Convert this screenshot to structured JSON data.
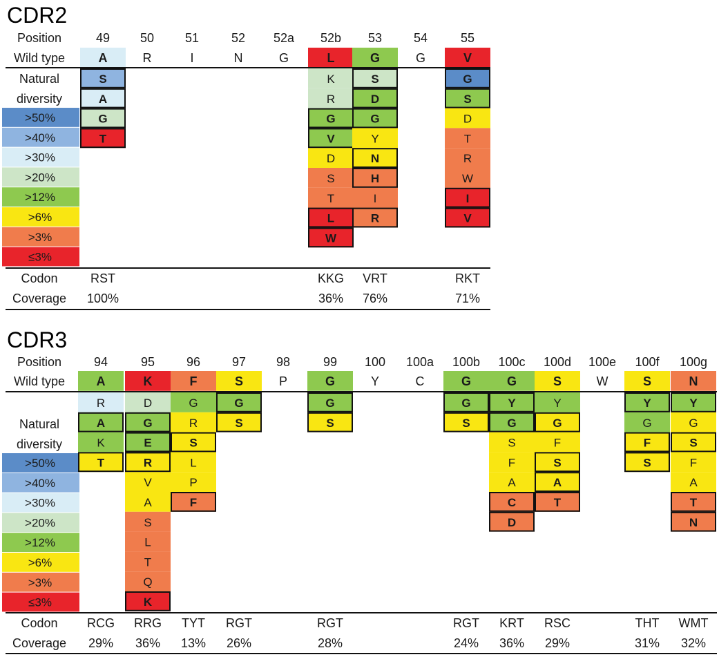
{
  "colors": {
    "gt50": "#5b8cc8",
    "gt40": "#8fb4e0",
    "gt30": "#d9edf6",
    "gt20": "#cde5c7",
    "gt12": "#8ec94f",
    "gt6": "#f9e612",
    "gt3": "#f07c4c",
    "le3": "#e8242b"
  },
  "legend": {
    "natural_diversity": [
      "Natural",
      "diversity"
    ],
    "items": [
      {
        "label": ">50%",
        "color": "gt50"
      },
      {
        "label": ">40%",
        "color": "gt40"
      },
      {
        "label": ">30%",
        "color": "gt30"
      },
      {
        "label": ">20%",
        "color": "gt20"
      },
      {
        "label": ">12%",
        "color": "gt12"
      },
      {
        "label": ">6%",
        "color": "gt6"
      },
      {
        "label": ">3%",
        "color": "gt3"
      },
      {
        "label": "≤3%",
        "color": "le3"
      }
    ]
  },
  "panels": [
    {
      "title": "CDR2",
      "row_labels": {
        "position": "Position",
        "wild_type": "Wild type",
        "codon": "Codon",
        "coverage": "Coverage"
      },
      "columns": [
        {
          "position": "49",
          "wild": {
            "aa": "A",
            "color": "gt30",
            "bold": true
          },
          "variants": [
            {
              "aa": "S",
              "color": "gt40",
              "bold": true,
              "boxed": true
            },
            {
              "aa": "A",
              "color": "gt30",
              "bold": true,
              "boxed": true
            },
            {
              "aa": "G",
              "color": "gt20",
              "bold": true,
              "boxed": true
            },
            {
              "aa": "T",
              "color": "le3",
              "bold": true,
              "boxed": true
            }
          ],
          "codon": "RST",
          "coverage": "100%"
        },
        {
          "position": "50",
          "wild": {
            "aa": "R"
          },
          "variants": [],
          "codon": "",
          "coverage": ""
        },
        {
          "position": "51",
          "wild": {
            "aa": "I"
          },
          "variants": [],
          "codon": "",
          "coverage": ""
        },
        {
          "position": "52",
          "wild": {
            "aa": "N"
          },
          "variants": [],
          "codon": "",
          "coverage": ""
        },
        {
          "position": "52a",
          "wild": {
            "aa": "G"
          },
          "variants": [],
          "codon": "",
          "coverage": ""
        },
        {
          "position": "52b",
          "wild": {
            "aa": "L",
            "color": "le3",
            "bold": true
          },
          "variants": [
            {
              "aa": "K",
              "color": "gt20"
            },
            {
              "aa": "R",
              "color": "gt20"
            },
            {
              "aa": "G",
              "color": "gt12",
              "bold": true,
              "boxed": true
            },
            {
              "aa": "V",
              "color": "gt12",
              "bold": true,
              "boxed": true
            },
            {
              "aa": "D",
              "color": "gt6"
            },
            {
              "aa": "S",
              "color": "gt3"
            },
            {
              "aa": "T",
              "color": "gt3"
            },
            {
              "aa": "L",
              "color": "le3",
              "bold": true,
              "boxed": true
            },
            {
              "aa": "W",
              "color": "le3",
              "bold": true,
              "boxed": true
            }
          ],
          "codon": "KKG",
          "coverage": "36%"
        },
        {
          "position": "53",
          "wild": {
            "aa": "G",
            "color": "gt12",
            "bold": true
          },
          "variants": [
            {
              "aa": "S",
              "color": "gt20",
              "bold": true,
              "boxed": true
            },
            {
              "aa": "D",
              "color": "gt12",
              "bold": true,
              "boxed": true
            },
            {
              "aa": "G",
              "color": "gt12",
              "bold": true,
              "boxed": true
            },
            {
              "aa": "Y",
              "color": "gt6"
            },
            {
              "aa": "N",
              "color": "gt6",
              "bold": true,
              "boxed": true
            },
            {
              "aa": "H",
              "color": "gt3",
              "bold": true,
              "boxed": true
            },
            {
              "aa": "I",
              "color": "gt3"
            },
            {
              "aa": "R",
              "color": "gt3",
              "bold": true,
              "boxed": true
            }
          ],
          "codon": "VRT",
          "coverage": "76%"
        },
        {
          "position": "54",
          "wild": {
            "aa": "G"
          },
          "variants": [],
          "codon": "",
          "coverage": ""
        },
        {
          "position": "55",
          "wild": {
            "aa": "V",
            "color": "le3",
            "bold": true
          },
          "variants": [
            {
              "aa": "G",
              "color": "gt50",
              "bold": true,
              "boxed": true
            },
            {
              "aa": "S",
              "color": "gt12",
              "bold": true,
              "boxed": true
            },
            {
              "aa": "D",
              "color": "gt6"
            },
            {
              "aa": "T",
              "color": "gt3"
            },
            {
              "aa": "R",
              "color": "gt3"
            },
            {
              "aa": "W",
              "color": "gt3"
            },
            {
              "aa": "I",
              "color": "le3",
              "bold": true,
              "boxed": true
            },
            {
              "aa": "V",
              "color": "le3",
              "bold": true,
              "boxed": true
            }
          ],
          "codon": "RKT",
          "coverage": "71%"
        }
      ]
    },
    {
      "title": "CDR3",
      "row_labels": {
        "position": "Position",
        "wild_type": "Wild type",
        "codon": "Codon",
        "coverage": "Coverage"
      },
      "columns": [
        {
          "position": "94",
          "wild": {
            "aa": "A",
            "color": "gt12",
            "bold": true
          },
          "variants": [
            {
              "aa": "R",
              "color": "gt30"
            },
            {
              "aa": "A",
              "color": "gt12",
              "bold": true,
              "boxed": true
            },
            {
              "aa": "K",
              "color": "gt12"
            },
            {
              "aa": "T",
              "color": "gt6",
              "bold": true,
              "boxed": true
            }
          ],
          "codon": "RCG",
          "coverage": "29%"
        },
        {
          "position": "95",
          "wild": {
            "aa": "K",
            "color": "le3",
            "bold": true
          },
          "variants": [
            {
              "aa": "D",
              "color": "gt20"
            },
            {
              "aa": "G",
              "color": "gt12",
              "bold": true,
              "boxed": true
            },
            {
              "aa": "E",
              "color": "gt12",
              "bold": true,
              "boxed": true
            },
            {
              "aa": "R",
              "color": "gt6",
              "bold": true,
              "boxed": true
            },
            {
              "aa": "V",
              "color": "gt6"
            },
            {
              "aa": "A",
              "color": "gt6"
            },
            {
              "aa": "S",
              "color": "gt3"
            },
            {
              "aa": "L",
              "color": "gt3"
            },
            {
              "aa": "T",
              "color": "gt3"
            },
            {
              "aa": "Q",
              "color": "gt3"
            },
            {
              "aa": "K",
              "color": "le3",
              "bold": true,
              "boxed": true
            }
          ],
          "codon": "RRG",
          "coverage": "36%"
        },
        {
          "position": "96",
          "wild": {
            "aa": "F",
            "color": "gt3",
            "bold": true
          },
          "variants": [
            {
              "aa": "G",
              "color": "gt12"
            },
            {
              "aa": "R",
              "color": "gt6"
            },
            {
              "aa": "S",
              "color": "gt6",
              "bold": true,
              "boxed": true
            },
            {
              "aa": "L",
              "color": "gt6"
            },
            {
              "aa": "P",
              "color": "gt6"
            },
            {
              "aa": "F",
              "color": "gt3",
              "bold": true,
              "boxed": true
            }
          ],
          "codon": "TYT",
          "coverage": "13%"
        },
        {
          "position": "97",
          "wild": {
            "aa": "S",
            "color": "gt6",
            "bold": true
          },
          "variants": [
            {
              "aa": "G",
              "color": "gt12",
              "bold": true,
              "boxed": true
            },
            {
              "aa": "S",
              "color": "gt6",
              "bold": true,
              "boxed": true
            }
          ],
          "codon": "RGT",
          "coverage": "26%"
        },
        {
          "position": "98",
          "wild": {
            "aa": "P"
          },
          "variants": [],
          "codon": "",
          "coverage": ""
        },
        {
          "position": "99",
          "wild": {
            "aa": "G",
            "color": "gt12",
            "bold": true
          },
          "variants": [
            {
              "aa": "G",
              "color": "gt12",
              "bold": true,
              "boxed": true
            },
            {
              "aa": "S",
              "color": "gt6",
              "bold": true,
              "boxed": true
            }
          ],
          "codon": "RGT",
          "coverage": "28%"
        },
        {
          "position": "100",
          "wild": {
            "aa": "Y"
          },
          "variants": [],
          "codon": "",
          "coverage": ""
        },
        {
          "position": "100a",
          "wild": {
            "aa": "C"
          },
          "variants": [],
          "codon": "",
          "coverage": ""
        },
        {
          "position": "100b",
          "wild": {
            "aa": "G",
            "color": "gt12",
            "bold": true
          },
          "variants": [
            {
              "aa": "G",
              "color": "gt12",
              "bold": true,
              "boxed": true
            },
            {
              "aa": "S",
              "color": "gt6",
              "bold": true,
              "boxed": true
            }
          ],
          "codon": "RGT",
          "coverage": "24%"
        },
        {
          "position": "100c",
          "wild": {
            "aa": "G",
            "color": "gt12",
            "bold": true
          },
          "variants": [
            {
              "aa": "Y",
              "color": "gt12",
              "bold": true,
              "boxed": true
            },
            {
              "aa": "G",
              "color": "gt12",
              "bold": true,
              "boxed": true
            },
            {
              "aa": "S",
              "color": "gt6"
            },
            {
              "aa": "F",
              "color": "gt6"
            },
            {
              "aa": "A",
              "color": "gt6"
            },
            {
              "aa": "C",
              "color": "gt3",
              "bold": true,
              "boxed": true
            },
            {
              "aa": "D",
              "color": "gt3",
              "bold": true,
              "boxed": true
            }
          ],
          "codon": "KRT",
          "coverage": "36%"
        },
        {
          "position": "100d",
          "wild": {
            "aa": "S",
            "color": "gt6",
            "bold": true
          },
          "variants": [
            {
              "aa": "Y",
              "color": "gt12"
            },
            {
              "aa": "G",
              "color": "gt6",
              "bold": true,
              "boxed": true
            },
            {
              "aa": "F",
              "color": "gt6"
            },
            {
              "aa": "S",
              "color": "gt6",
              "bold": true,
              "boxed": true
            },
            {
              "aa": "A",
              "color": "gt6",
              "bold": true,
              "boxed": true
            },
            {
              "aa": "T",
              "color": "gt3",
              "bold": true,
              "boxed": true
            }
          ],
          "codon": "RSC",
          "coverage": "29%"
        },
        {
          "position": "100e",
          "wild": {
            "aa": "W"
          },
          "variants": [],
          "codon": "",
          "coverage": ""
        },
        {
          "position": "100f",
          "wild": {
            "aa": "S",
            "color": "gt6",
            "bold": true
          },
          "variants": [
            {
              "aa": "Y",
              "color": "gt12",
              "bold": true,
              "boxed": true
            },
            {
              "aa": "G",
              "color": "gt12"
            },
            {
              "aa": "F",
              "color": "gt6",
              "bold": true,
              "boxed": true
            },
            {
              "aa": "S",
              "color": "gt6",
              "bold": true,
              "boxed": true
            }
          ],
          "codon": "THT",
          "coverage": "31%"
        },
        {
          "position": "100g",
          "wild": {
            "aa": "N",
            "color": "gt3",
            "bold": true
          },
          "variants": [
            {
              "aa": "Y",
              "color": "gt12",
              "bold": true,
              "boxed": true
            },
            {
              "aa": "G",
              "color": "gt6"
            },
            {
              "aa": "S",
              "color": "gt6",
              "bold": true,
              "boxed": true
            },
            {
              "aa": "F",
              "color": "gt6"
            },
            {
              "aa": "A",
              "color": "gt6"
            },
            {
              "aa": "T",
              "color": "gt3",
              "bold": true,
              "boxed": true
            },
            {
              "aa": "N",
              "color": "gt3",
              "bold": true,
              "boxed": true
            }
          ],
          "codon": "WMT",
          "coverage": "32%"
        }
      ]
    }
  ]
}
